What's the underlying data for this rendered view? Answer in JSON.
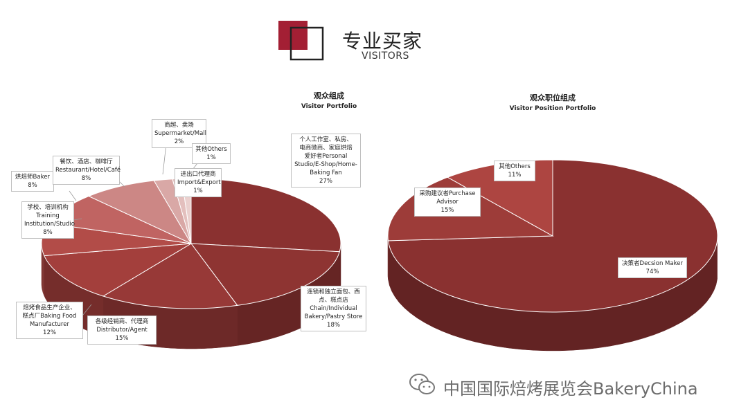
{
  "header": {
    "title": "专业买家",
    "subtitle": "VISITORS"
  },
  "chart_data": [
    {
      "type": "pie",
      "title": "观众组成",
      "subtitle": "Visitor Portfolio",
      "slices": [
        {
          "label": "个人工作室、私房、电商微商、家庭烘焙爱好者Personal Studio/E-Shop/Home-Baking Fan",
          "value": 27,
          "pct_label": "27%",
          "color": "#8a3130"
        },
        {
          "label": "连锁和独立面包、西点、糕点店 Chain/Individual Bakery/Pastry Store",
          "value": 18,
          "pct_label": "18%",
          "color": "#8e3432"
        },
        {
          "label": "各级经销商、代理商 Distributor/Agent",
          "value": 15,
          "pct_label": "15%",
          "color": "#973937"
        },
        {
          "label": "焙烤食品生产企业、糕点厂Baking Food Manufacturer",
          "value": 12,
          "pct_label": "12%",
          "color": "#a33f3c"
        },
        {
          "label": "学校、培训机构 Training Institution/Studio",
          "value": 8,
          "pct_label": "8%",
          "color": "#b24c48"
        },
        {
          "label": "烘焙师Baker",
          "value": 8,
          "pct_label": "8%",
          "color": "#c06462"
        },
        {
          "label": "餐饮、酒店、咖啡厅 Restaurant/Hotel/Café",
          "value": 8,
          "pct_label": "8%",
          "color": "#cc8785"
        },
        {
          "label": "商超、卖场 Supermarket/Mall",
          "value": 2,
          "pct_label": "2%",
          "color": "#d9a8a6"
        },
        {
          "label": "其他Others",
          "value": 1,
          "pct_label": "1%",
          "color": "#e3bfbd"
        },
        {
          "label": "进出口代理商 Import&Export",
          "value": 1,
          "pct_label": "1%",
          "color": "#ead0ce"
        }
      ]
    },
    {
      "type": "pie",
      "title": "观众职位组成",
      "subtitle": "Visitor Position Portfolio",
      "slices": [
        {
          "label": "决策者Decsion Maker",
          "value": 74,
          "pct_label": "74%",
          "color": "#8a3130"
        },
        {
          "label": "采购建议者Purchase Advisor",
          "value": 15,
          "pct_label": "15%",
          "color": "#9d3c39"
        },
        {
          "label": "其他Others",
          "value": 11,
          "pct_label": "11%",
          "color": "#ad4541"
        }
      ]
    }
  ],
  "labels_left": [
    {
      "name": "label-personal",
      "lines": [
        "个人工作室、私房、",
        "电商微商、家庭烘焙",
        "爱好者Personal",
        "Studio/E-Shop/Home-",
        "Baking Fan"
      ],
      "pct": "27%"
    },
    {
      "name": "label-chain",
      "lines": [
        "连锁和独立面包、西",
        "点、糕点店",
        "Chain/Individual",
        "Bakery/Pastry Store"
      ],
      "pct": "18%"
    },
    {
      "name": "label-distributor",
      "lines": [
        "各级经销商、代理商",
        "Distributor/Agent"
      ],
      "pct": "15%"
    },
    {
      "name": "label-manufacturer",
      "lines": [
        "焙烤食品生产企业、",
        "糕点厂Baking Food",
        "Manufacturer"
      ],
      "pct": "12%"
    },
    {
      "name": "label-training",
      "lines": [
        "学校、培训机构",
        "Training",
        "Institution/Studio"
      ],
      "pct": "8%"
    },
    {
      "name": "label-baker",
      "lines": [
        "烘焙师Baker"
      ],
      "pct": "8%"
    },
    {
      "name": "label-restaurant",
      "lines": [
        "餐饮、酒店、咖啡厅",
        "Restaurant/Hotel/Café"
      ],
      "pct": "8%"
    },
    {
      "name": "label-supermarket",
      "lines": [
        "商超、卖场",
        "Supermarket/Mall"
      ],
      "pct": "2%"
    },
    {
      "name": "label-others",
      "lines": [
        "其他Others"
      ],
      "pct": "1%"
    },
    {
      "name": "label-import",
      "lines": [
        "进出口代理商",
        "Import&Export"
      ],
      "pct": "1%"
    }
  ],
  "labels_right": [
    {
      "name": "label-decision",
      "lines": [
        "决策者Decsion Maker"
      ],
      "pct": "74%"
    },
    {
      "name": "label-purchase",
      "lines": [
        "采购建议者Purchase",
        "Advisor"
      ],
      "pct": "15%"
    },
    {
      "name": "label-others-2",
      "lines": [
        "其他Others"
      ],
      "pct": "11%"
    }
  ],
  "watermark": "中国国际焙烤展览会BakeryChina",
  "colors": {
    "accent": "#a31f34",
    "side_dark": "#6b2221"
  }
}
